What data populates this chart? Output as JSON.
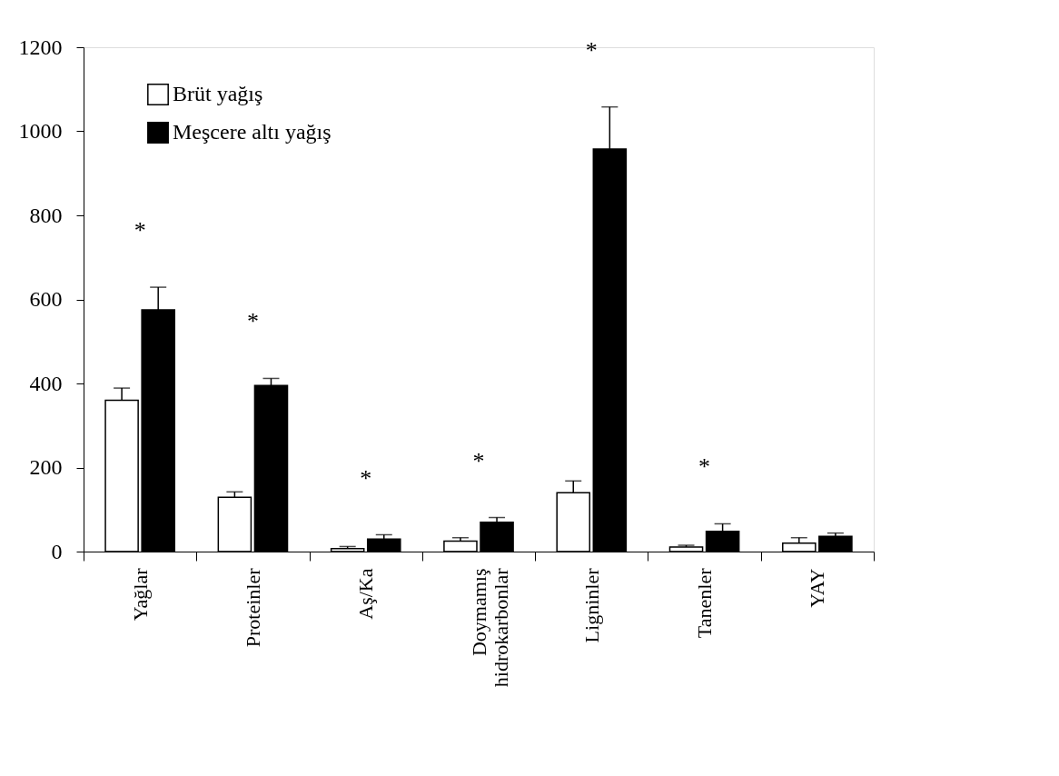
{
  "chart_data": {
    "type": "bar",
    "categories": [
      "Yağlar",
      "Proteinler",
      "Aş/Ka",
      "Doymamış hidrokarbonlar",
      "Ligninler",
      "Tanenler",
      "YAY"
    ],
    "series": [
      {
        "name": "Brüt yağış",
        "color": "#ffffff",
        "values": [
          360,
          129,
          7,
          25,
          140,
          11,
          20
        ],
        "errors": [
          [
            360,
            389
          ],
          [
            129,
            142
          ],
          [
            7,
            12
          ],
          [
            25,
            33
          ],
          [
            140,
            168
          ],
          [
            11,
            15
          ],
          [
            20,
            33
          ]
        ]
      },
      {
        "name": "Meşcere altı yağış",
        "color": "#000000",
        "values": [
          575,
          395,
          30,
          70,
          958,
          48,
          36
        ],
        "errors": [
          [
            575,
            629
          ],
          [
            395,
            412
          ],
          [
            30,
            40
          ],
          [
            70,
            81
          ],
          [
            958,
            1058
          ],
          [
            48,
            66
          ],
          [
            36,
            44
          ]
        ]
      }
    ],
    "ylim": [
      0,
      1200
    ],
    "yticks": [
      0,
      200,
      400,
      600,
      800,
      1000,
      1200
    ],
    "grid": false,
    "legend": "top left",
    "annotations": [
      "*",
      "*",
      "*",
      "*",
      "*",
      "*"
    ]
  }
}
